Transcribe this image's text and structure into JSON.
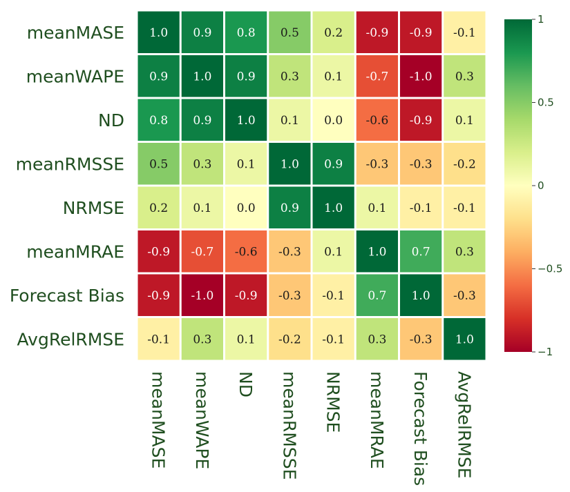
{
  "chart_data": {
    "type": "heatmap",
    "title": "",
    "xlabel": "",
    "ylabel": "",
    "row_labels": [
      "meanMASE",
      "meanWAPE",
      "ND",
      "meanRMSSE",
      "NRMSE",
      "meanMRAE",
      "Forecast Bias",
      "AvgRelRMSE"
    ],
    "col_labels": [
      "meanMASE",
      "meanWAPE",
      "ND",
      "meanRMSSE",
      "NRMSE",
      "meanMRAE",
      "Forecast Bias",
      "AvgRelRMSE"
    ],
    "values": [
      [
        1.0,
        0.9,
        0.8,
        0.5,
        0.2,
        -0.9,
        -0.9,
        -0.1
      ],
      [
        0.9,
        1.0,
        0.9,
        0.3,
        0.1,
        -0.7,
        -1.0,
        0.3
      ],
      [
        0.8,
        0.9,
        1.0,
        0.1,
        0.0,
        -0.6,
        -0.9,
        0.1
      ],
      [
        0.5,
        0.3,
        0.1,
        1.0,
        0.9,
        -0.3,
        -0.3,
        -0.2
      ],
      [
        0.2,
        0.1,
        0.0,
        0.9,
        1.0,
        0.1,
        -0.1,
        -0.1
      ],
      [
        -0.9,
        -0.7,
        -0.6,
        -0.3,
        0.1,
        1.0,
        0.7,
        0.3
      ],
      [
        -0.9,
        -1.0,
        -0.9,
        -0.3,
        -0.1,
        0.7,
        1.0,
        -0.3
      ],
      [
        -0.1,
        0.3,
        0.1,
        -0.2,
        -0.1,
        0.3,
        -0.3,
        1.0
      ]
    ],
    "value_range": [
      -1,
      1
    ],
    "colormap": "RdYlGn",
    "colorbar_ticks": [
      {
        "value": 1,
        "label": "1"
      },
      {
        "value": 0.5,
        "label": "0.5"
      },
      {
        "value": 0,
        "label": "0"
      },
      {
        "value": -0.5,
        "label": "−0.5"
      },
      {
        "value": -1,
        "label": "−1"
      }
    ],
    "grid": false,
    "legend_position": "right colorbar"
  }
}
